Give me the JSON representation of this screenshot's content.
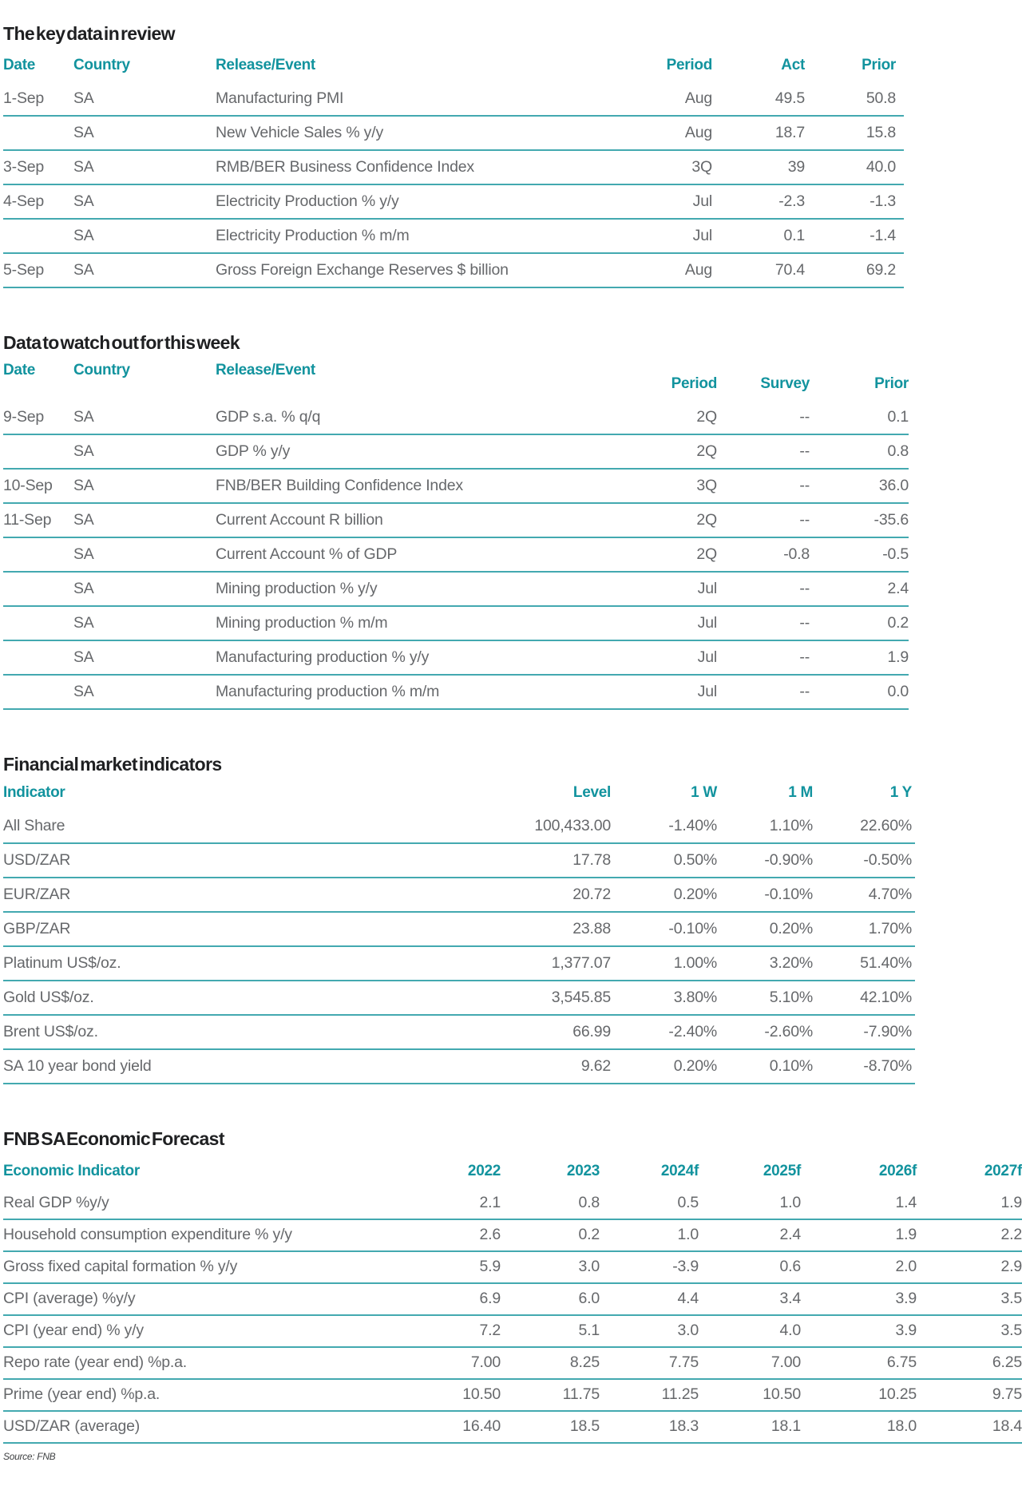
{
  "colors": {
    "teal_header": "#12939E",
    "rule_line": "#43A9B0",
    "body_text": "#66686B",
    "title_text": "#1F2022"
  },
  "sections": {
    "key_data": {
      "title": "The key data in review",
      "columns": [
        "Date",
        "Country",
        "Release/Event",
        "Period",
        "Act",
        "Prior"
      ],
      "rows": [
        [
          "1-Sep",
          "SA",
          "Manufacturing PMI",
          "Aug",
          "49.5",
          "50.8"
        ],
        [
          "",
          "SA",
          "New Vehicle Sales % y/y",
          "Aug",
          "18.7",
          "15.8"
        ],
        [
          "3-Sep",
          "SA",
          "RMB/BER Business Confidence Index",
          "3Q",
          "39",
          "40.0"
        ],
        [
          "4-Sep",
          "SA",
          "Electricity Production % y/y",
          "Jul",
          "-2.3",
          "-1.3"
        ],
        [
          "",
          "SA",
          "Electricity Production % m/m",
          "Jul",
          "0.1",
          "-1.4"
        ],
        [
          "5-Sep",
          "SA",
          "Gross Foreign Exchange Reserves $ billion",
          "Aug",
          "70.4",
          "69.2"
        ]
      ]
    },
    "watch": {
      "title": "Data to watch out for this week",
      "columns": [
        "Date",
        "Country",
        "Release/Event",
        "Period",
        "Survey",
        "Prior"
      ],
      "rows": [
        [
          "9-Sep",
          "SA",
          "GDP s.a. % q/q",
          "2Q",
          "--",
          "0.1"
        ],
        [
          "",
          "SA",
          "GDP % y/y",
          "2Q",
          "--",
          "0.8"
        ],
        [
          "10-Sep",
          "SA",
          "FNB/BER Building Confidence Index",
          "3Q",
          "--",
          "36.0"
        ],
        [
          "11-Sep",
          "SA",
          "Current Account R billion",
          "2Q",
          "--",
          "-35.6"
        ],
        [
          "",
          "SA",
          "Current Account % of GDP",
          "2Q",
          "-0.8",
          "-0.5"
        ],
        [
          "",
          "SA",
          "Mining production % y/y",
          "Jul",
          "--",
          "2.4"
        ],
        [
          "",
          "SA",
          "Mining production % m/m",
          "Jul",
          "--",
          "0.2"
        ],
        [
          "",
          "SA",
          "Manufacturing production % y/y",
          "Jul",
          "--",
          "1.9"
        ],
        [
          "",
          "SA",
          "Manufacturing production % m/m",
          "Jul",
          "--",
          "0.0"
        ]
      ]
    },
    "financial": {
      "title": "Financial market indicators",
      "columns": [
        "Indicator",
        "Level",
        "1 W",
        "1 M",
        "1 Y"
      ],
      "rows": [
        [
          "All Share",
          "100,433.00",
          "-1.40%",
          "1.10%",
          "22.60%"
        ],
        [
          "USD/ZAR",
          "17.78",
          "0.50%",
          "-0.90%",
          "-0.50%"
        ],
        [
          "EUR/ZAR",
          "20.72",
          "0.20%",
          "-0.10%",
          "4.70%"
        ],
        [
          "GBP/ZAR",
          "23.88",
          "-0.10%",
          "0.20%",
          "1.70%"
        ],
        [
          "Platinum US$/oz.",
          "1,377.07",
          "1.00%",
          "3.20%",
          "51.40%"
        ],
        [
          "Gold US$/oz.",
          "3,545.85",
          "3.80%",
          "5.10%",
          "42.10%"
        ],
        [
          "Brent US$/oz.",
          "66.99",
          "-2.40%",
          "-2.60%",
          "-7.90%"
        ],
        [
          "SA 10 year bond yield",
          "9.62",
          "0.20%",
          "0.10%",
          "-8.70%"
        ]
      ]
    },
    "forecast": {
      "title": "FNB SA Economic Forecast",
      "columns": [
        "Economic Indicator",
        "2022",
        "2023",
        "2024f",
        "2025f",
        "2026f",
        "2027f"
      ],
      "rows": [
        [
          "Real GDP %y/y",
          "2.1",
          "0.8",
          "0.5",
          "1.0",
          "1.4",
          "1.9"
        ],
        [
          "Household consumption expenditure % y/y",
          "2.6",
          "0.2",
          "1.0",
          "2.4",
          "1.9",
          "2.2"
        ],
        [
          "Gross fixed capital formation % y/y",
          "5.9",
          "3.0",
          "-3.9",
          "0.6",
          "2.0",
          "2.9"
        ],
        [
          "CPI (average) %y/y",
          "6.9",
          "6.0",
          "4.4",
          "3.4",
          "3.9",
          "3.5"
        ],
        [
          "CPI (year end) % y/y",
          "7.2",
          "5.1",
          "3.0",
          "4.0",
          "3.9",
          "3.5"
        ],
        [
          "Repo rate (year end) %p.a.",
          "7.00",
          "8.25",
          "7.75",
          "7.00",
          "6.75",
          "6.25"
        ],
        [
          "Prime (year end) %p.a.",
          "10.50",
          "11.75",
          "11.25",
          "10.50",
          "10.25",
          "9.75"
        ],
        [
          "USD/ZAR (average)",
          "16.40",
          "18.5",
          "18.3",
          "18.1",
          "18.0",
          "18.4"
        ]
      ]
    },
    "source": "Source: FNB"
  }
}
